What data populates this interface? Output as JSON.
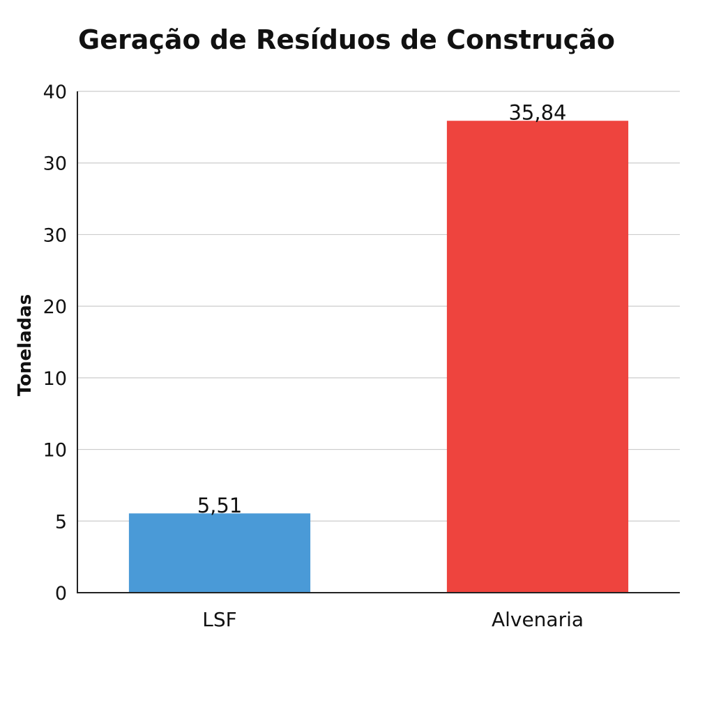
{
  "chart_data": {
    "type": "bar",
    "title": "Geração de Resíduos de Construção",
    "xlabel": "",
    "ylabel": "Toneladas",
    "categories": [
      "LSF",
      "Alvenaria"
    ],
    "values": [
      5.51,
      35.84
    ],
    "value_labels": [
      "5,51",
      "35,84"
    ],
    "colors": [
      "#4a9ad7",
      "#ee443e"
    ],
    "y_tick_labels": [
      "0",
      "5",
      "10",
      "10",
      "20",
      "30",
      "30",
      "40"
    ],
    "ylim": [
      0,
      40
    ],
    "grid": true,
    "legend": "none"
  }
}
